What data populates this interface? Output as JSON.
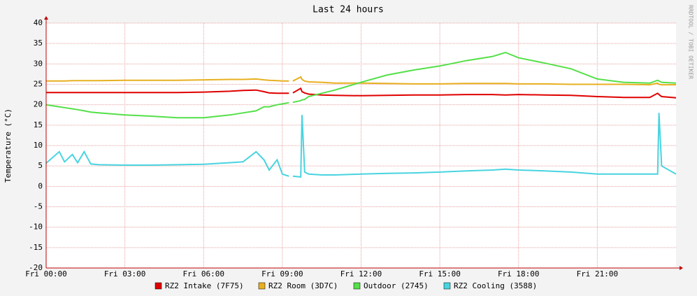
{
  "chart_data": {
    "type": "line",
    "title": "Last 24 hours",
    "ylabel": "Temperature (°C)",
    "side_text": "RRDTOOL / TOBI OETIKER",
    "x": [
      0,
      0.5,
      0.7,
      1,
      1.2,
      1.45,
      1.7,
      2,
      3,
      4,
      5,
      6,
      7,
      7.5,
      8,
      8.3,
      8.5,
      8.8,
      9,
      9.25,
      9.3,
      9.4,
      9.7,
      9.75,
      9.85,
      10,
      10.5,
      11,
      12,
      13,
      14,
      15,
      16,
      17,
      17.5,
      18,
      19,
      20,
      21,
      22,
      23,
      23.3,
      23.35,
      23.45,
      24
    ],
    "series": [
      {
        "name": "RZ2 Intake (7F75)",
        "color": "#e00000",
        "values": [
          23,
          23,
          23,
          23,
          23,
          23,
          23,
          23,
          23,
          23,
          23,
          23.1,
          23.3,
          23.5,
          23.6,
          23.2,
          22.9,
          22.8,
          22.8,
          22.8,
          null,
          22.9,
          24,
          23.2,
          22.9,
          22.6,
          22.4,
          22.3,
          22.2,
          22.3,
          22.4,
          22.4,
          22.5,
          22.5,
          22.4,
          22.5,
          22.4,
          22.3,
          22,
          21.8,
          21.8,
          22.8,
          22.5,
          22,
          21.7
        ]
      },
      {
        "name": "RZ2 Room (3D7C)",
        "color": "#e8b020",
        "values": [
          25.8,
          25.8,
          25.8,
          25.9,
          25.9,
          25.9,
          25.9,
          25.9,
          26,
          26,
          26,
          26.1,
          26.2,
          26.2,
          26.3,
          26.1,
          26,
          25.9,
          25.8,
          25.8,
          null,
          25.8,
          26.8,
          26.2,
          25.8,
          25.6,
          25.5,
          25.3,
          25.3,
          25.2,
          25.1,
          25.1,
          25.2,
          25.2,
          25.2,
          25.1,
          25.1,
          25,
          25,
          25,
          24.9,
          25.3,
          25,
          24.9,
          24.9
        ]
      },
      {
        "name": "Outdoor (2745)",
        "color": "#54e048",
        "values": [
          20,
          19.5,
          19.3,
          19,
          18.8,
          18.5,
          18.2,
          18,
          17.5,
          17.2,
          16.8,
          16.8,
          17.5,
          18,
          18.5,
          19.5,
          19.5,
          20,
          20.2,
          20.5,
          null,
          20.6,
          21,
          21.2,
          21.3,
          22,
          22.8,
          23.6,
          25.5,
          27.3,
          28.5,
          29.5,
          30.8,
          31.8,
          32.8,
          31.5,
          30.2,
          28.8,
          26.3,
          25.5,
          25.3,
          26,
          25.8,
          25.5,
          25.3
        ]
      },
      {
        "name": "RZ2 Cooling (3588)",
        "color": "#48d4e0",
        "values": [
          5.7,
          8.5,
          6,
          7.8,
          5.8,
          8.5,
          5.5,
          5.3,
          5.2,
          5.2,
          5.3,
          5.4,
          5.8,
          6,
          8.5,
          6.5,
          4,
          6.5,
          3,
          2.5,
          null,
          2.5,
          2.3,
          17.5,
          3.5,
          3,
          2.8,
          2.8,
          3,
          3.2,
          3.3,
          3.5,
          3.8,
          4,
          4.2,
          4,
          3.8,
          3.5,
          3,
          3,
          3,
          3,
          18,
          5,
          3
        ]
      }
    ],
    "xlim": [
      0,
      24
    ],
    "xticks": [
      {
        "value": 0,
        "label": "Fri 00:00"
      },
      {
        "value": 3,
        "label": "Fri 03:00"
      },
      {
        "value": 6,
        "label": "Fri 06:00"
      },
      {
        "value": 9,
        "label": "Fri 09:00"
      },
      {
        "value": 12,
        "label": "Fri 12:00"
      },
      {
        "value": 15,
        "label": "Fri 15:00"
      },
      {
        "value": 18,
        "label": "Fri 18:00"
      },
      {
        "value": 21,
        "label": "Fri 21:00"
      }
    ],
    "ylim": [
      -20,
      40
    ],
    "yticks": [
      -20,
      -15,
      -10,
      -5,
      0,
      5,
      10,
      15,
      20,
      25,
      30,
      35,
      40
    ],
    "grid": true
  }
}
